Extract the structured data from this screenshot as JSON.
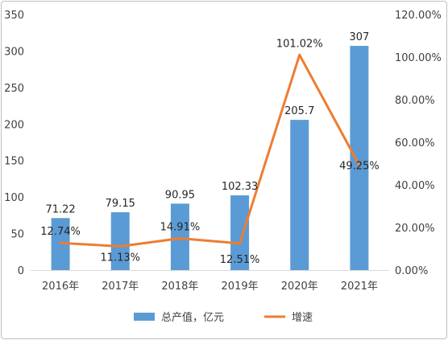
{
  "chart_data": {
    "type": "bar",
    "categories": [
      "2016年",
      "2017年",
      "2018年",
      "2019年",
      "2020年",
      "2021年"
    ],
    "series": [
      {
        "name": "总产值，亿元",
        "type": "bar",
        "axis": "left",
        "color": "#5b9bd5",
        "values": [
          71.22,
          79.15,
          90.95,
          102.33,
          205.7,
          307
        ],
        "labels": [
          "71.22",
          "79.15",
          "90.95",
          "102.33",
          "205.7",
          "307"
        ]
      },
      {
        "name": "增速",
        "type": "line",
        "axis": "right",
        "color": "#ed7d31",
        "values": [
          12.74,
          11.13,
          14.91,
          12.51,
          101.02,
          49.25
        ],
        "labels": [
          "12.74%",
          "11.13%",
          "14.91%",
          "12.51%",
          "101.02%",
          "49.25%"
        ]
      }
    ],
    "left_axis": {
      "ylim": [
        0,
        350
      ],
      "ticks": [
        "0",
        "50",
        "100",
        "150",
        "200",
        "250",
        "300",
        "350"
      ]
    },
    "right_axis": {
      "ylim": [
        0,
        120
      ],
      "unit": "%",
      "ticks": [
        "0.00%",
        "20.00%",
        "40.00%",
        "60.00%",
        "80.00%",
        "100.00%",
        "120.00%"
      ]
    },
    "grid": false,
    "legend_position": "bottom"
  }
}
